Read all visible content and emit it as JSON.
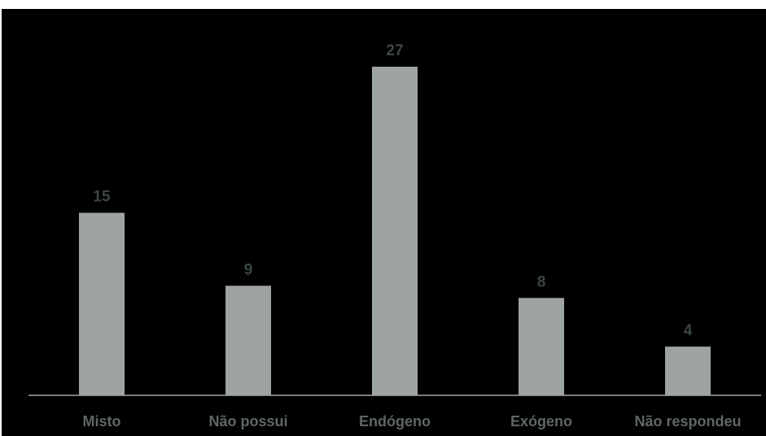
{
  "chart_data": {
    "type": "bar",
    "categories": [
      "Misto",
      "Não possui",
      "Endógeno",
      "Exógeno",
      "Não respondeu"
    ],
    "values": [
      15,
      9,
      27,
      8,
      4
    ],
    "title": "",
    "xlabel": "",
    "ylabel": "",
    "ylim": [
      0,
      27
    ],
    "grid": false,
    "legend": "none",
    "colors": {
      "background": "#000000",
      "bar": "#9ea4a4",
      "axis": "#a3a8a8",
      "value_label": "#3d4646",
      "category_label": "#5e6666"
    }
  }
}
